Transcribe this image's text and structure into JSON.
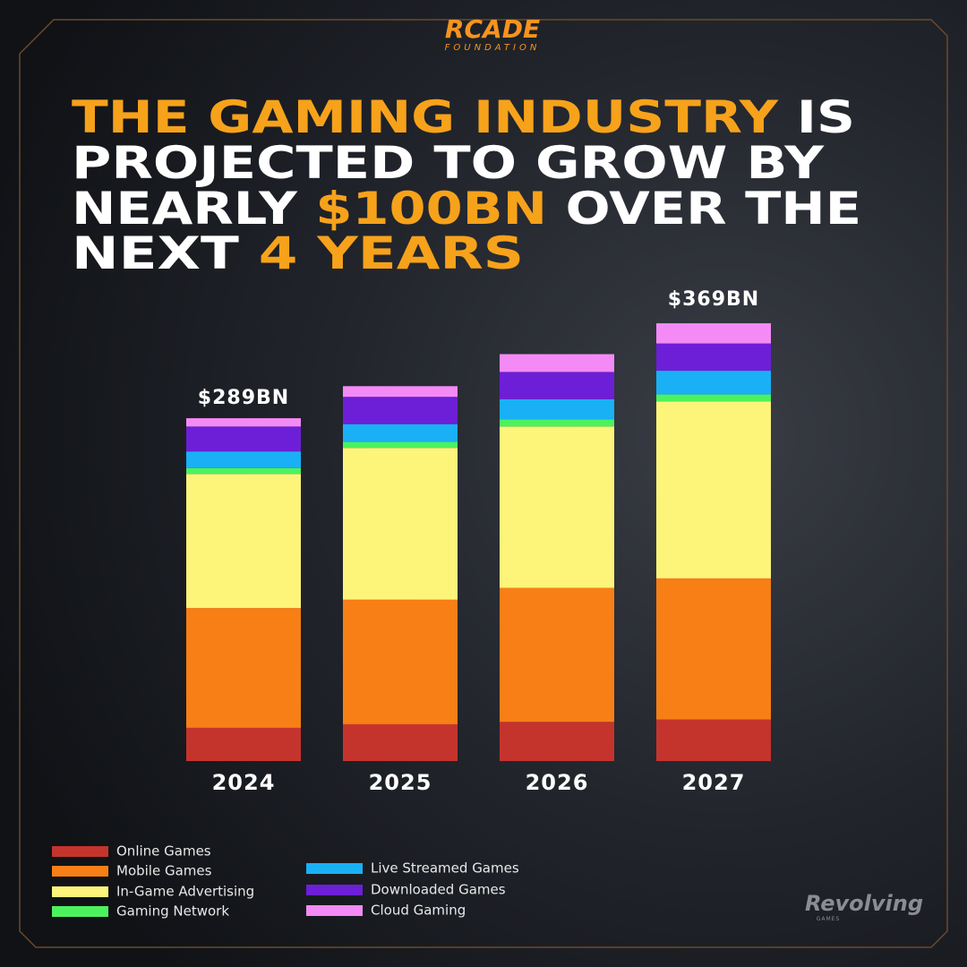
{
  "chart_data": {
    "type": "stacked_bar",
    "title_lines": [
      [
        {
          "text": "THE GAMING INDUSTRY",
          "color": "#f7a21b"
        },
        {
          "text": " IS",
          "color": "#ffffff"
        }
      ],
      [
        {
          "text": "PROJECTED TO GROW BY",
          "color": "#ffffff"
        }
      ],
      [
        {
          "text": "NEARLY ",
          "color": "#ffffff"
        },
        {
          "text": "$100BN",
          "color": "#f7a21b"
        },
        {
          "text": " OVER THE",
          "color": "#ffffff"
        }
      ],
      [
        {
          "text": "NEXT ",
          "color": "#ffffff"
        },
        {
          "text": "4 YEARS",
          "color": "#f7a21b"
        }
      ]
    ],
    "categories": [
      "2024",
      "2025",
      "2026",
      "2027"
    ],
    "annotations": [
      "$289BN",
      "$369BN"
    ],
    "series": [
      {
        "name": "Online Games",
        "color": "#c4342d",
        "values": [
          28,
          31,
          33,
          35
        ]
      },
      {
        "name": "Mobile Games",
        "color": "#f77f16",
        "values": [
          101,
          105,
          113,
          119
        ]
      },
      {
        "name": "In-Game Advertising",
        "color": "#fdf47a",
        "values": [
          113,
          128,
          136,
          149
        ]
      },
      {
        "name": "Gaming Network",
        "color": "#4cf25e",
        "values": [
          5,
          5,
          6,
          6
        ]
      },
      {
        "name": "Live Streamed Games",
        "color": "#1ab0f5",
        "values": [
          14,
          15,
          17,
          20
        ]
      },
      {
        "name": "Downloaded Games",
        "color": "#6c1fd6",
        "values": [
          21,
          23,
          23,
          23
        ]
      },
      {
        "name": "Cloud Gaming",
        "color": "#f48af5",
        "values": [
          7,
          9,
          15,
          17
        ]
      }
    ]
  },
  "branding": {
    "logo": "RCADE",
    "logo_sub": "FOUNDATION",
    "partner": "Revolving",
    "partner_sub": "GAMES"
  }
}
